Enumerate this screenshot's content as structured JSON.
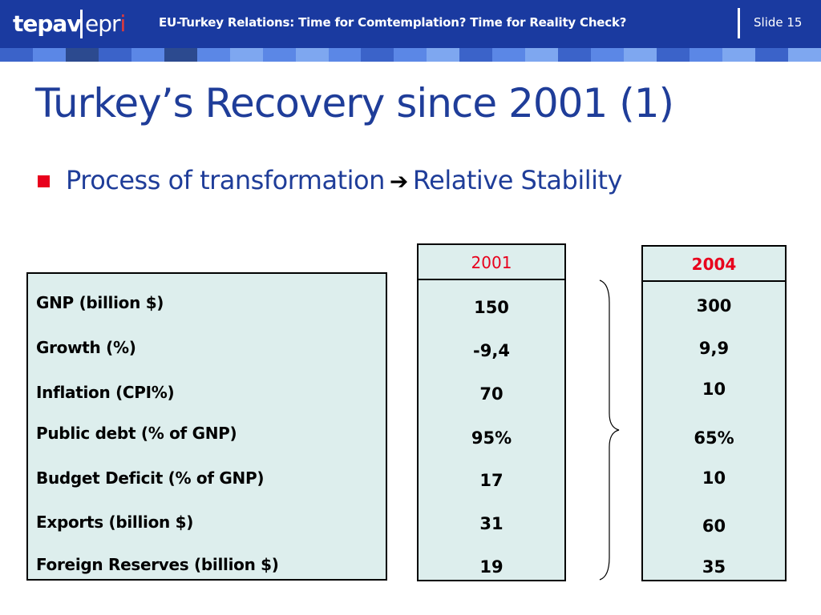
{
  "header": {
    "logo_left": "tepav",
    "logo_right_main": "epr",
    "logo_right_hook": "i",
    "title": "EU-Turkey Relations: Time for Comtemplation? Time for Reality Check?",
    "slide_number": "Slide 15",
    "colors": {
      "background": "#1a3aa0",
      "hook": "#e23a3a"
    }
  },
  "stripe_colors": [
    "#3b63c9",
    "#5b87e6",
    "#2c4a8f",
    "#3b63c9",
    "#5b87e6",
    "#2c4a8f",
    "#5b87e6",
    "#7ea7f0",
    "#5b87e6",
    "#7ea7f0",
    "#5b87e6",
    "#3b63c9",
    "#5b87e6",
    "#7ea7f0",
    "#3b63c9",
    "#5b87e6",
    "#7ea7f0",
    "#3b63c9",
    "#5b87e6",
    "#7ea7f0",
    "#3b63c9",
    "#5b87e6",
    "#7ea7f0",
    "#3b63c9",
    "#7ea7f0"
  ],
  "slide": {
    "title": "Turkey’s Recovery since 2001  (1)",
    "bullet_left": "Process of transformation",
    "bullet_arrow": "➔",
    "bullet_right": "Relative Stability"
  },
  "table": {
    "rows": [
      {
        "label": "GNP (billion $)",
        "v2001": "150",
        "v2004": "300"
      },
      {
        "label": "Growth (%)",
        "v2001": "-9,4",
        "v2004": "9,9"
      },
      {
        "label": "Inflation (CPI%)",
        "v2001": "70",
        "v2004": "10"
      },
      {
        "label": "Public debt (% of GNP)",
        "v2001": "95%",
        "v2004": "65%"
      },
      {
        "label": "Budget Deficit (% of GNP)",
        "v2001": "17",
        "v2004": "10"
      },
      {
        "label": "Exports (billion $)",
        "v2001": "31",
        "v2004": "60"
      },
      {
        "label": "Foreign Reserves (billion $)",
        "v2001": "19",
        "v2004": "35"
      }
    ],
    "col_2001_header": "2001",
    "col_2004_header": "2004",
    "colors": {
      "cell_bg": "#ddeeed",
      "year_header": "#e8001c"
    }
  }
}
